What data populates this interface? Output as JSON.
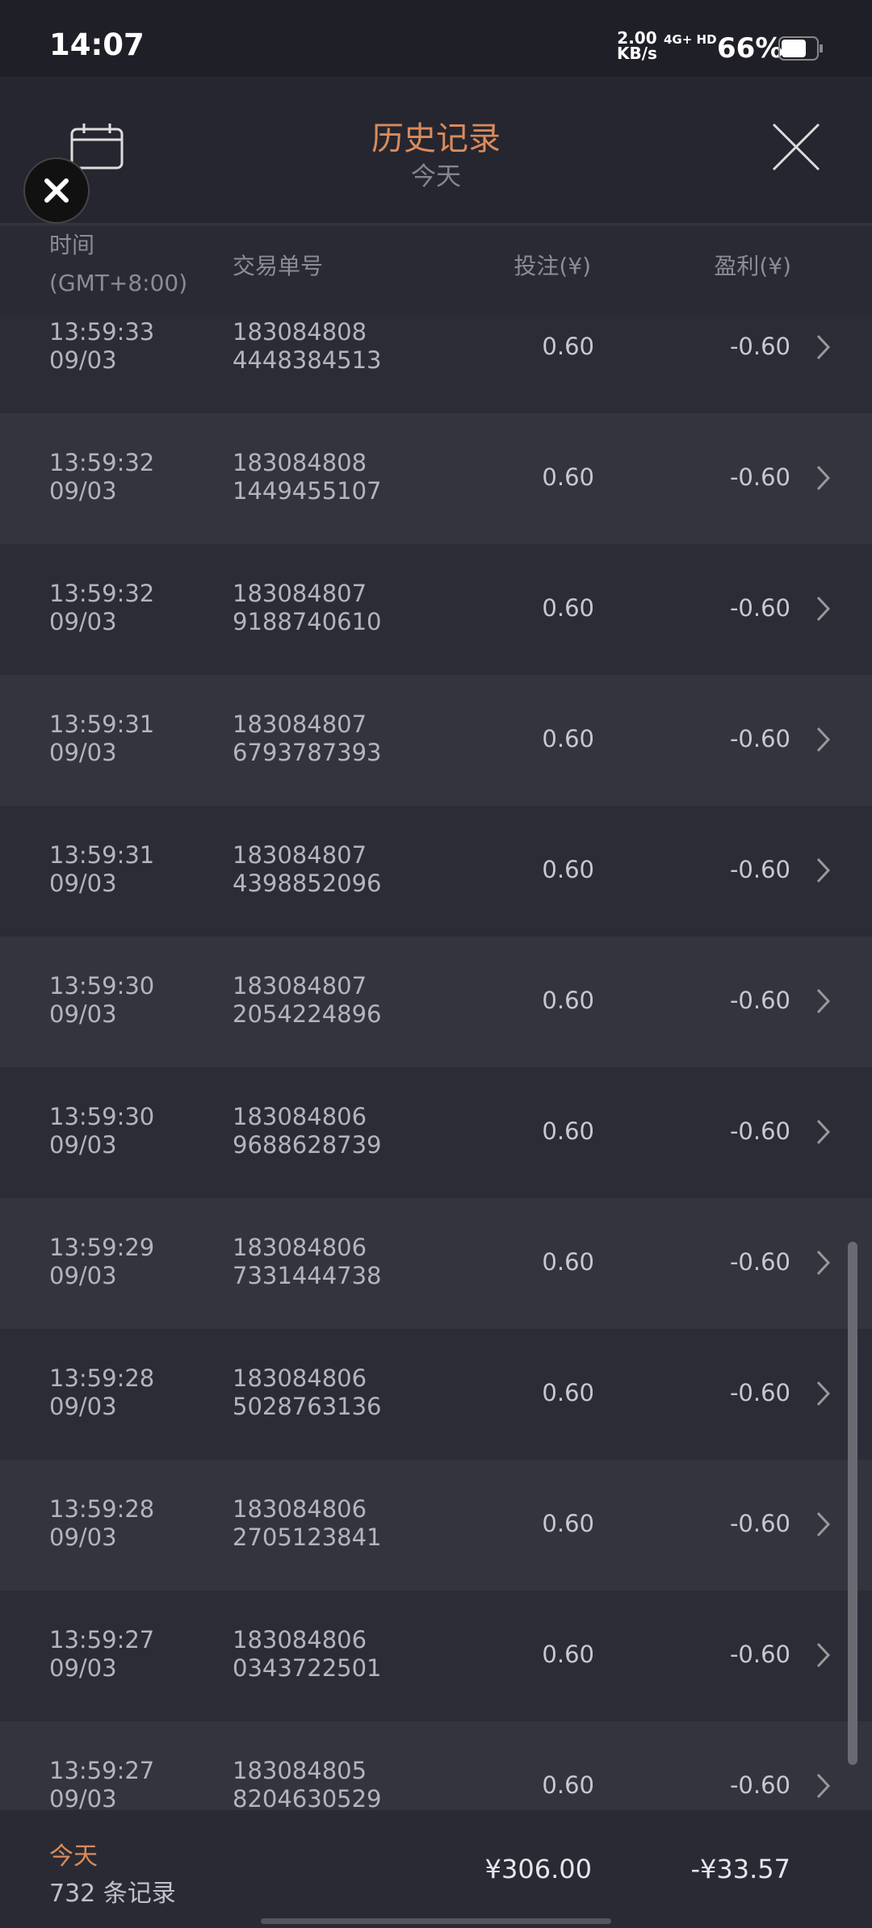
{
  "status_bar": {
    "time": "14:07",
    "net_speed": "2.00",
    "net_unit": "KB/s",
    "network": "4G+ HD",
    "battery": "66%"
  },
  "header": {
    "title": "历史记录",
    "subtitle": "今天"
  },
  "table": {
    "columns": {
      "time": "时间",
      "timezone": "(GMT+8:00)",
      "order": "交易单号",
      "stake": "投注(¥)",
      "profit": "盈利(¥)"
    },
    "rows": [
      [
        "13:59:33",
        "09/03",
        "183084808",
        "4448384513",
        "0.60",
        "-0.60"
      ],
      [
        "13:59:32",
        "09/03",
        "183084808",
        "1449455107",
        "0.60",
        "-0.60"
      ],
      [
        "13:59:32",
        "09/03",
        "183084807",
        "9188740610",
        "0.60",
        "-0.60"
      ],
      [
        "13:59:31",
        "09/03",
        "183084807",
        "6793787393",
        "0.60",
        "-0.60"
      ],
      [
        "13:59:31",
        "09/03",
        "183084807",
        "4398852096",
        "0.60",
        "-0.60"
      ],
      [
        "13:59:30",
        "09/03",
        "183084807",
        "2054224896",
        "0.60",
        "-0.60"
      ],
      [
        "13:59:30",
        "09/03",
        "183084806",
        "9688628739",
        "0.60",
        "-0.60"
      ],
      [
        "13:59:29",
        "09/03",
        "183084806",
        "7331444738",
        "0.60",
        "-0.60"
      ],
      [
        "13:59:28",
        "09/03",
        "183084806",
        "5028763136",
        "0.60",
        "-0.60"
      ],
      [
        "13:59:28",
        "09/03",
        "183084806",
        "2705123841",
        "0.60",
        "-0.60"
      ],
      [
        "13:59:27",
        "09/03",
        "183084806",
        "0343722501",
        "0.60",
        "-0.60"
      ],
      [
        "13:59:27",
        "09/03",
        "183084805",
        "8204630529",
        "0.60",
        "-0.60"
      ]
    ]
  },
  "footer": {
    "label": "今天",
    "count": "732 条记录",
    "stake_total": "¥306.00",
    "profit_total": "-¥33.57"
  }
}
